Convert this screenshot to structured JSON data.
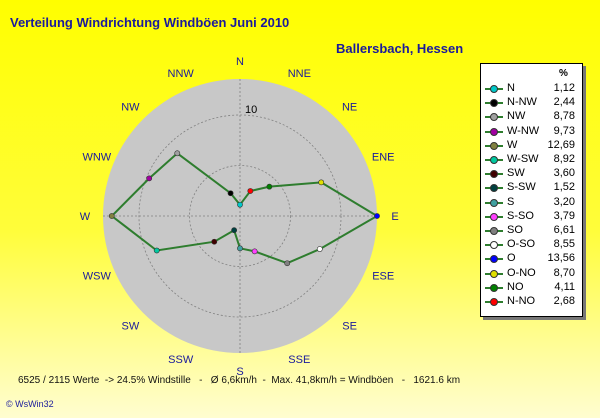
{
  "title": "Verteilung Windrichtung Windböen  Juni 2010",
  "location": "Ballersbach, Hessen",
  "footer": "6525 / 2115 Werte  -> 24.5% Windstille   -   Ø 6,6km/h  -  Max. 41,8km/h = Windböen   -   1621.6 km",
  "logo": "© WsWin32",
  "legend_unit": "%",
  "colors": {
    "line": "#2e7d2e",
    "disc": "#c8c8c8",
    "grid": "#808080",
    "label": "#1a1a9c"
  },
  "chart_data": {
    "type": "radar",
    "directions": [
      "N",
      "NNE",
      "NE",
      "ENE",
      "E",
      "ESE",
      "SE",
      "SSE",
      "S",
      "SSW",
      "SW",
      "WSW",
      "W",
      "WNW",
      "NW",
      "NNW"
    ],
    "values": [
      1.12,
      2.68,
      4.11,
      8.7,
      13.56,
      8.55,
      6.61,
      3.79,
      3.2,
      1.52,
      3.6,
      8.92,
      12.69,
      9.73,
      8.78,
      2.44
    ],
    "rmax": 13.56,
    "ring_label": "10",
    "legend": [
      {
        "label": "N",
        "value": "1,12",
        "color": "#00c8c8"
      },
      {
        "label": "N-NW",
        "value": "2,44",
        "color": "#000000"
      },
      {
        "label": "NW",
        "value": "8,78",
        "color": "#a0a0a0"
      },
      {
        "label": "W-NW",
        "value": "9,73",
        "color": "#a000a0"
      },
      {
        "label": "W",
        "value": "12,69",
        "color": "#808040"
      },
      {
        "label": "W-SW",
        "value": "8,92",
        "color": "#00c8a0"
      },
      {
        "label": "SW",
        "value": "3,60",
        "color": "#400000"
      },
      {
        "label": "S-SW",
        "value": "1,52",
        "color": "#004040"
      },
      {
        "label": "S",
        "value": "3,20",
        "color": "#40a0a0"
      },
      {
        "label": "S-SO",
        "value": "3,79",
        "color": "#ff40ff"
      },
      {
        "label": "SO",
        "value": "6,61",
        "color": "#808080"
      },
      {
        "label": "O-SO",
        "value": "8,55",
        "color": "#ffffff"
      },
      {
        "label": "O",
        "value": "13,56",
        "color": "#0000ff"
      },
      {
        "label": "O-NO",
        "value": "8,70",
        "color": "#e0e000"
      },
      {
        "label": "NO",
        "value": "4,11",
        "color": "#008000"
      },
      {
        "label": "N-NO",
        "value": "2,68",
        "color": "#ff0000"
      }
    ],
    "point_colors": [
      "#00c8c8",
      "#ff0000",
      "#008000",
      "#e0e000",
      "#0000ff",
      "#ffffff",
      "#808080",
      "#ff40ff",
      "#40a0a0",
      "#004040",
      "#400000",
      "#00c8a0",
      "#808040",
      "#a000a0",
      "#a0a0a0",
      "#000000"
    ]
  }
}
